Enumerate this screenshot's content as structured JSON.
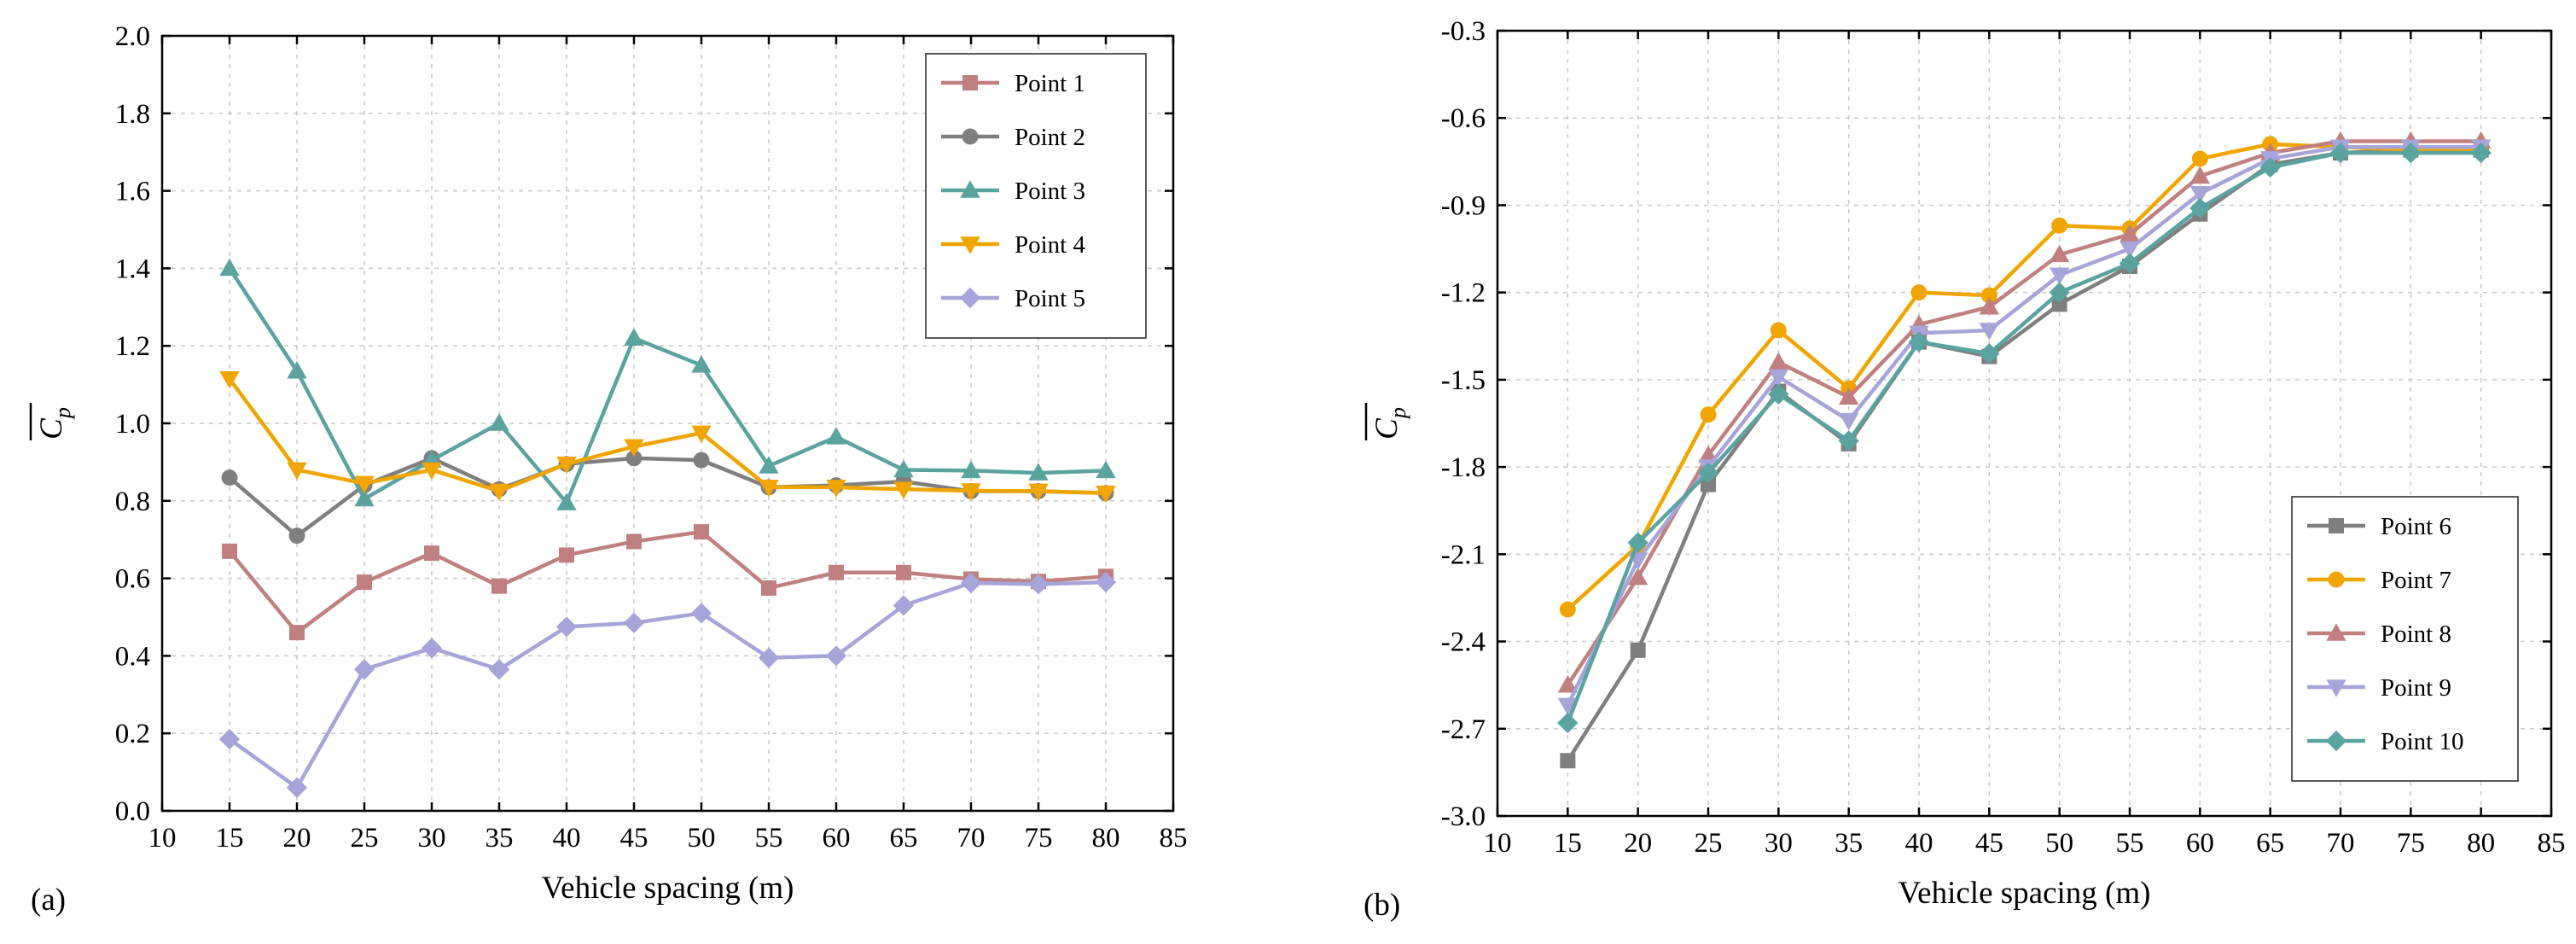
{
  "chart_data": [
    {
      "type": "line",
      "panel_label": "(a)",
      "xlabel": "Vehicle spacing (m)",
      "ylabel": "Cp",
      "xlim": [
        10,
        85
      ],
      "ylim": [
        0.0,
        2.0
      ],
      "xticks": [
        10,
        15,
        20,
        25,
        30,
        35,
        40,
        45,
        50,
        55,
        60,
        65,
        70,
        75,
        80,
        85
      ],
      "yticks": [
        0.0,
        0.2,
        0.4,
        0.6,
        0.8,
        1.0,
        1.2,
        1.4,
        1.6,
        1.8,
        2.0
      ],
      "ytick_decimals": 1,
      "grid": true,
      "legend_position": "top-right",
      "x": [
        15,
        20,
        25,
        30,
        35,
        40,
        45,
        50,
        55,
        60,
        65,
        70,
        75,
        80
      ],
      "series": [
        {
          "name": "Point 1",
          "color": "#c08080",
          "marker": "square",
          "values": [
            0.67,
            0.46,
            0.59,
            0.665,
            0.58,
            0.66,
            0.695,
            0.72,
            0.575,
            0.615,
            0.615,
            0.598,
            0.592,
            0.605
          ]
        },
        {
          "name": "Point 2",
          "color": "#7f7f7f",
          "marker": "circle",
          "values": [
            0.86,
            0.71,
            0.84,
            0.91,
            0.83,
            0.895,
            0.91,
            0.905,
            0.835,
            0.84,
            0.85,
            0.825,
            0.825,
            0.82
          ]
        },
        {
          "name": "Point 3",
          "color": "#5aa3a0",
          "marker": "triangle-up",
          "values": [
            1.4,
            1.135,
            0.805,
            0.905,
            1.0,
            0.795,
            1.22,
            1.15,
            0.89,
            0.965,
            0.88,
            0.878,
            0.872,
            0.878
          ]
        },
        {
          "name": "Point 4",
          "color": "#f0a500",
          "marker": "triangle-down",
          "values": [
            1.115,
            0.88,
            0.845,
            0.88,
            0.825,
            0.895,
            0.94,
            0.975,
            0.835,
            0.835,
            0.83,
            0.826,
            0.825,
            0.82
          ]
        },
        {
          "name": "Point 5",
          "color": "#a7a4da",
          "marker": "diamond",
          "values": [
            0.185,
            0.06,
            0.365,
            0.42,
            0.365,
            0.475,
            0.485,
            0.51,
            0.395,
            0.4,
            0.53,
            0.588,
            0.585,
            0.59
          ]
        }
      ]
    },
    {
      "type": "line",
      "panel_label": "(b)",
      "xlabel": "Vehicle spacing (m)",
      "ylabel": "Cp",
      "xlim": [
        10,
        85
      ],
      "ylim": [
        -3.0,
        -0.3
      ],
      "xticks": [
        10,
        15,
        20,
        25,
        30,
        35,
        40,
        45,
        50,
        55,
        60,
        65,
        70,
        75,
        80,
        85
      ],
      "yticks": [
        -3.0,
        -2.7,
        -2.4,
        -2.1,
        -1.8,
        -1.5,
        -1.2,
        -0.9,
        -0.6,
        -0.3
      ],
      "ytick_decimals": 1,
      "grid": true,
      "legend_position": "bottom-right",
      "x": [
        15,
        20,
        25,
        30,
        35,
        40,
        45,
        50,
        55,
        60,
        65,
        70,
        75,
        80
      ],
      "series": [
        {
          "name": "Point 6",
          "color": "#7f7f7f",
          "marker": "square",
          "values": [
            -2.81,
            -2.43,
            -1.86,
            -1.54,
            -1.72,
            -1.37,
            -1.42,
            -1.24,
            -1.11,
            -0.93,
            -0.76,
            -0.72,
            -0.71,
            -0.71
          ]
        },
        {
          "name": "Point 7",
          "color": "#f0a500",
          "marker": "circle",
          "values": [
            -2.29,
            -2.07,
            -1.62,
            -1.33,
            -1.53,
            -1.2,
            -1.21,
            -0.97,
            -0.98,
            -0.74,
            -0.69,
            -0.7,
            -0.71,
            -0.71
          ]
        },
        {
          "name": "Point 8",
          "color": "#c08080",
          "marker": "triangle-up",
          "values": [
            -2.55,
            -2.18,
            -1.76,
            -1.44,
            -1.56,
            -1.31,
            -1.25,
            -1.07,
            -1.0,
            -0.8,
            -0.72,
            -0.68,
            -0.68,
            -0.68
          ]
        },
        {
          "name": "Point 9",
          "color": "#a7a4da",
          "marker": "triangle-down",
          "values": [
            -2.62,
            -2.12,
            -1.8,
            -1.49,
            -1.64,
            -1.34,
            -1.33,
            -1.14,
            -1.05,
            -0.86,
            -0.74,
            -0.7,
            -0.7,
            -0.7
          ]
        },
        {
          "name": "Point 10",
          "color": "#5aa3a0",
          "marker": "diamond",
          "values": [
            -2.68,
            -2.06,
            -1.82,
            -1.55,
            -1.71,
            -1.37,
            -1.41,
            -1.2,
            -1.1,
            -0.91,
            -0.77,
            -0.72,
            -0.72,
            -0.72
          ]
        }
      ]
    }
  ]
}
